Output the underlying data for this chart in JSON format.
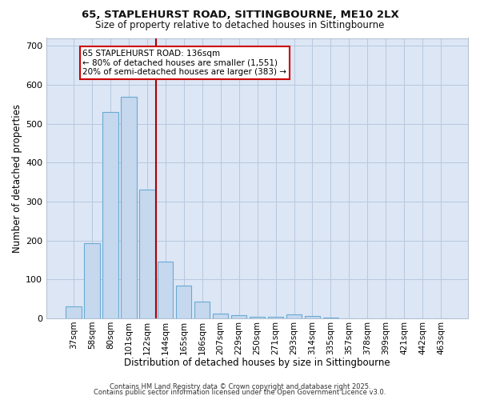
{
  "title1": "65, STAPLEHURST ROAD, SITTINGBOURNE, ME10 2LX",
  "title2": "Size of property relative to detached houses in Sittingbourne",
  "xlabel": "Distribution of detached houses by size in Sittingbourne",
  "ylabel": "Number of detached properties",
  "categories": [
    "37sqm",
    "58sqm",
    "80sqm",
    "101sqm",
    "122sqm",
    "144sqm",
    "165sqm",
    "186sqm",
    "207sqm",
    "229sqm",
    "250sqm",
    "271sqm",
    "293sqm",
    "314sqm",
    "335sqm",
    "357sqm",
    "378sqm",
    "399sqm",
    "421sqm",
    "442sqm",
    "463sqm"
  ],
  "values": [
    30,
    193,
    530,
    570,
    330,
    145,
    85,
    42,
    12,
    8,
    3,
    3,
    10,
    5,
    2,
    0,
    0,
    0,
    0,
    0,
    0
  ],
  "bar_color": "#c5d8ee",
  "bar_edge_color": "#6aaad4",
  "vline_pos": 4.5,
  "vline_color": "#aa0000",
  "annotation_text": "65 STAPLEHURST ROAD: 136sqm\n← 80% of detached houses are smaller (1,551)\n20% of semi-detached houses are larger (383) →",
  "annotation_box_color": "#ffffff",
  "annotation_box_edge": "#cc0000",
  "ylim": [
    0,
    720
  ],
  "yticks": [
    0,
    100,
    200,
    300,
    400,
    500,
    600,
    700
  ],
  "bg_color": "#dce6f5",
  "footer1": "Contains HM Land Registry data © Crown copyright and database right 2025.",
  "footer2": "Contains public sector information licensed under the Open Government Licence v3.0."
}
